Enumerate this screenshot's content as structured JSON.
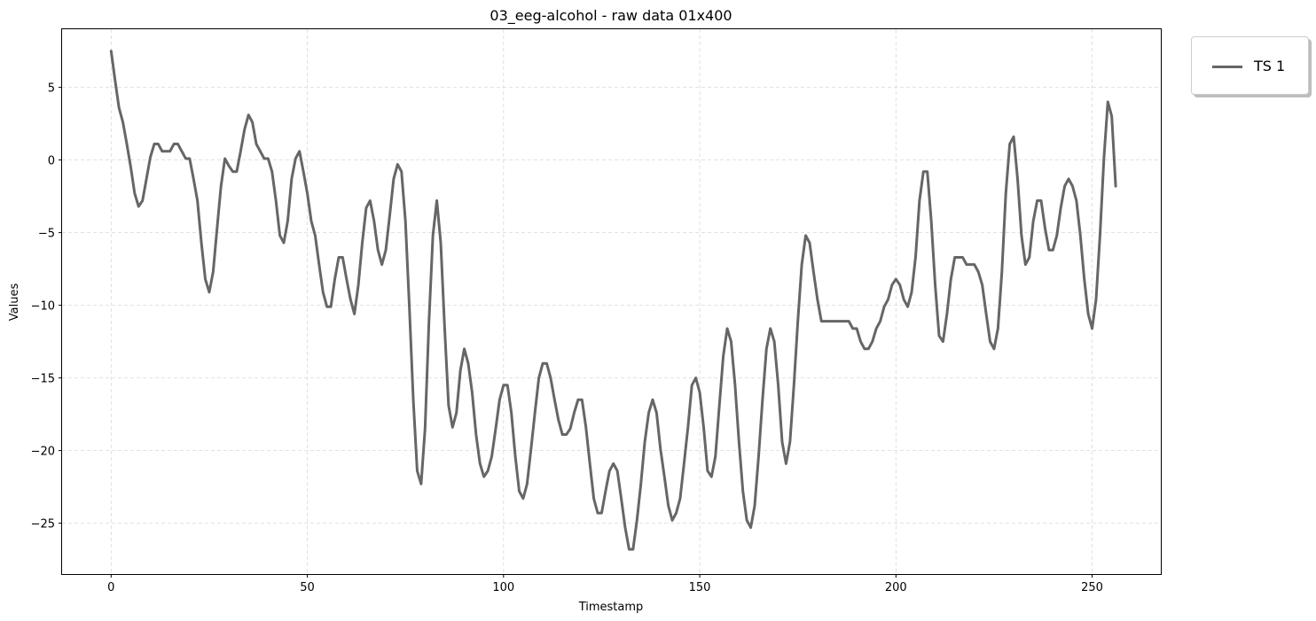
{
  "chart_data": {
    "type": "line",
    "title": "03_eeg-alcohol - raw data 01x400",
    "xlabel": "Timestamp",
    "ylabel": "Values",
    "xlim": [
      -12.5,
      267.5
    ],
    "ylim": [
      -28.5,
      9.0
    ],
    "xticks": [
      0,
      50,
      100,
      150,
      200,
      250
    ],
    "xtick_labels": [
      "0",
      "50",
      "100",
      "150",
      "200",
      "250"
    ],
    "yticks": [
      5,
      0,
      -5,
      -10,
      -15,
      -20,
      -25
    ],
    "ytick_labels": [
      "5",
      "0",
      "−5",
      "−10",
      "−15",
      "−20",
      "−25"
    ],
    "grid": true,
    "legend_position": "outside-top-right",
    "series": [
      {
        "name": "TS 1",
        "color": "#666666",
        "x_start": 0,
        "x_step": 1,
        "values": [
          7.5,
          5.5,
          3.6,
          2.6,
          1.1,
          -0.5,
          -2.3,
          -3.2,
          -2.8,
          -1.3,
          0.2,
          1.1,
          1.1,
          0.6,
          0.6,
          0.6,
          1.1,
          1.1,
          0.6,
          0.1,
          0.1,
          -1.3,
          -2.8,
          -5.7,
          -8.2,
          -9.1,
          -7.7,
          -4.7,
          -1.8,
          0.1,
          -0.4,
          -0.8,
          -0.8,
          0.6,
          2.1,
          3.1,
          2.6,
          1.1,
          0.6,
          0.1,
          0.1,
          -0.8,
          -2.8,
          -5.2,
          -5.7,
          -4.2,
          -1.3,
          0.1,
          0.6,
          -0.8,
          -2.3,
          -4.2,
          -5.2,
          -7.2,
          -9.1,
          -10.1,
          -10.1,
          -8.2,
          -6.7,
          -6.7,
          -8.2,
          -9.6,
          -10.6,
          -8.6,
          -5.7,
          -3.3,
          -2.8,
          -4.2,
          -6.2,
          -7.2,
          -6.2,
          -3.8,
          -1.3,
          -0.3,
          -0.8,
          -4.2,
          -10.1,
          -16.5,
          -21.4,
          -22.3,
          -18.5,
          -11.1,
          -5.2,
          -2.8,
          -5.7,
          -11.6,
          -16.9,
          -18.4,
          -17.4,
          -14.5,
          -13.0,
          -14.0,
          -16.0,
          -18.9,
          -20.9,
          -21.8,
          -21.4,
          -20.4,
          -18.5,
          -16.5,
          -15.5,
          -15.5,
          -17.4,
          -20.4,
          -22.8,
          -23.3,
          -22.3,
          -19.9,
          -17.4,
          -15.0,
          -14.0,
          -14.0,
          -15.0,
          -16.5,
          -17.9,
          -18.9,
          -18.9,
          -18.5,
          -17.4,
          -16.5,
          -16.5,
          -18.4,
          -20.9,
          -23.3,
          -24.3,
          -24.3,
          -22.8,
          -21.4,
          -20.9,
          -21.4,
          -23.3,
          -25.3,
          -26.8,
          -26.8,
          -24.8,
          -22.3,
          -19.4,
          -17.4,
          -16.5,
          -17.4,
          -19.9,
          -21.8,
          -23.8,
          -24.8,
          -24.3,
          -23.3,
          -20.9,
          -18.4,
          -15.5,
          -15.0,
          -16.0,
          -18.4,
          -21.4,
          -21.8,
          -20.4,
          -16.9,
          -13.5,
          -11.6,
          -12.5,
          -15.5,
          -19.4,
          -22.8,
          -24.8,
          -25.3,
          -23.8,
          -20.4,
          -16.5,
          -13.0,
          -11.6,
          -12.5,
          -15.5,
          -19.4,
          -20.9,
          -19.4,
          -15.5,
          -11.1,
          -7.2,
          -5.2,
          -5.7,
          -7.7,
          -9.6,
          -11.1,
          -11.1,
          -11.1,
          -11.1,
          -11.1,
          -11.1,
          -11.1,
          -11.1,
          -11.6,
          -11.6,
          -12.5,
          -13.0,
          -13.0,
          -12.5,
          -11.6,
          -11.1,
          -10.1,
          -9.6,
          -8.6,
          -8.2,
          -8.6,
          -9.6,
          -10.1,
          -9.1,
          -6.7,
          -2.8,
          -0.8,
          -0.8,
          -4.2,
          -8.6,
          -12.1,
          -12.5,
          -10.6,
          -8.2,
          -6.7,
          -6.7,
          -6.7,
          -7.2,
          -7.2,
          -7.2,
          -7.7,
          -8.6,
          -10.6,
          -12.5,
          -13.0,
          -11.6,
          -7.7,
          -2.3,
          1.1,
          1.6,
          -1.3,
          -5.2,
          -7.2,
          -6.7,
          -4.2,
          -2.8,
          -2.8,
          -4.7,
          -6.2,
          -6.2,
          -5.2,
          -3.3,
          -1.8,
          -1.3,
          -1.8,
          -2.8,
          -5.2,
          -8.2,
          -10.6,
          -11.6,
          -9.6,
          -5.2,
          0.1,
          4.0,
          3.0,
          -1.8
        ]
      }
    ]
  }
}
